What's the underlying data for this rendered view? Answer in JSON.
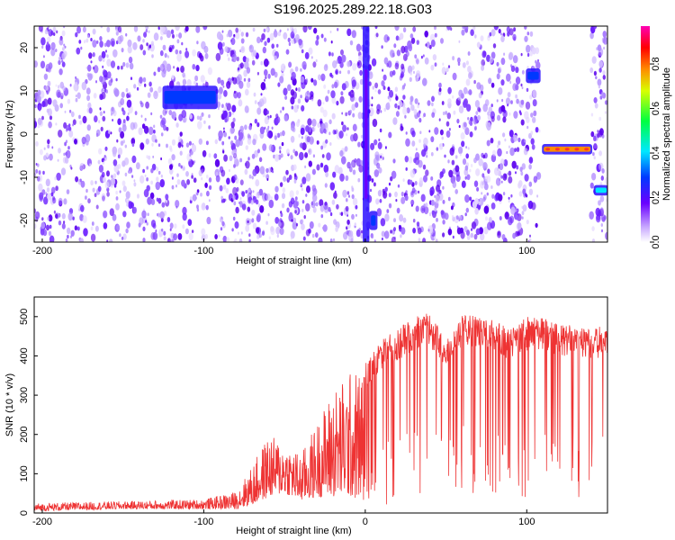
{
  "title": "S196.2025.289.22.18.G03",
  "chart_data": [
    {
      "type": "heatmap",
      "xlabel": "Height of straight line (km)",
      "ylabel": "Frequency (Hz)",
      "xlim": [
        -205,
        150
      ],
      "ylim": [
        -25,
        25
      ],
      "xticks": [
        -200,
        -100,
        0,
        100
      ],
      "xtick_labels": [
        "-200",
        "-100",
        "0",
        "100"
      ],
      "yticks": [
        -20,
        -10,
        0,
        10,
        20
      ],
      "ytick_labels": [
        "-20",
        "-10",
        "0",
        "10",
        "20"
      ],
      "colorbar": {
        "label": "Normalized spectral amplitude",
        "range": [
          0,
          0.97
        ],
        "ticks": [
          0.0,
          0.2,
          0.4,
          0.6,
          0.8
        ],
        "tick_labels": [
          "0.0",
          "0.2",
          "0.4",
          "0.6",
          "0.8"
        ]
      },
      "features": [
        {
          "x": [
            -125,
            -92
          ],
          "y": [
            6,
            11
          ],
          "level": 0.3
        },
        {
          "x": [
            -1,
            2
          ],
          "y": [
            -25,
            25
          ],
          "level": 0.2
        },
        {
          "x": [
            3,
            7
          ],
          "y": [
            -22,
            -18
          ],
          "level": 0.35
        },
        {
          "x": [
            100,
            108
          ],
          "y": [
            12,
            15
          ],
          "level": 0.4
        },
        {
          "x": [
            110,
            140
          ],
          "y": [
            -4.5,
            -2.5
          ],
          "level": 0.8
        },
        {
          "x": [
            142,
            150
          ],
          "y": [
            -14,
            -12
          ],
          "level": 0.45
        }
      ],
      "grid": false
    },
    {
      "type": "line",
      "xlabel": "Height of straight line (km)",
      "ylabel": "SNR (10 * v/v)",
      "xlim": [
        -205,
        150
      ],
      "ylim": [
        0,
        550
      ],
      "xticks": [
        -200,
        -100,
        0,
        100
      ],
      "xtick_labels": [
        "-200",
        "-100",
        "0",
        "100"
      ],
      "yticks": [
        0,
        100,
        200,
        300,
        400,
        500
      ],
      "ytick_labels": [
        "0",
        "100",
        "200",
        "300",
        "400",
        "500"
      ],
      "color": "#ee3333",
      "envelope": {
        "x": [
          -205,
          -150,
          -100,
          -80,
          -70,
          -60,
          -50,
          -40,
          -30,
          -20,
          -10,
          0,
          10,
          20,
          30,
          40,
          50,
          60,
          70,
          80,
          90,
          100,
          110,
          120,
          130,
          140,
          150
        ],
        "y_upper": [
          25,
          30,
          35,
          55,
          120,
          200,
          180,
          150,
          230,
          320,
          360,
          380,
          440,
          470,
          500,
          510,
          440,
          510,
          500,
          490,
          470,
          500,
          500,
          480,
          480,
          470,
          480
        ],
        "y_lower": [
          5,
          10,
          10,
          10,
          20,
          40,
          50,
          30,
          40,
          40,
          40,
          30,
          20,
          20,
          20,
          30,
          60,
          40,
          30,
          30,
          20,
          0,
          30,
          30,
          40,
          30,
          40
        ]
      },
      "grid": false
    }
  ]
}
